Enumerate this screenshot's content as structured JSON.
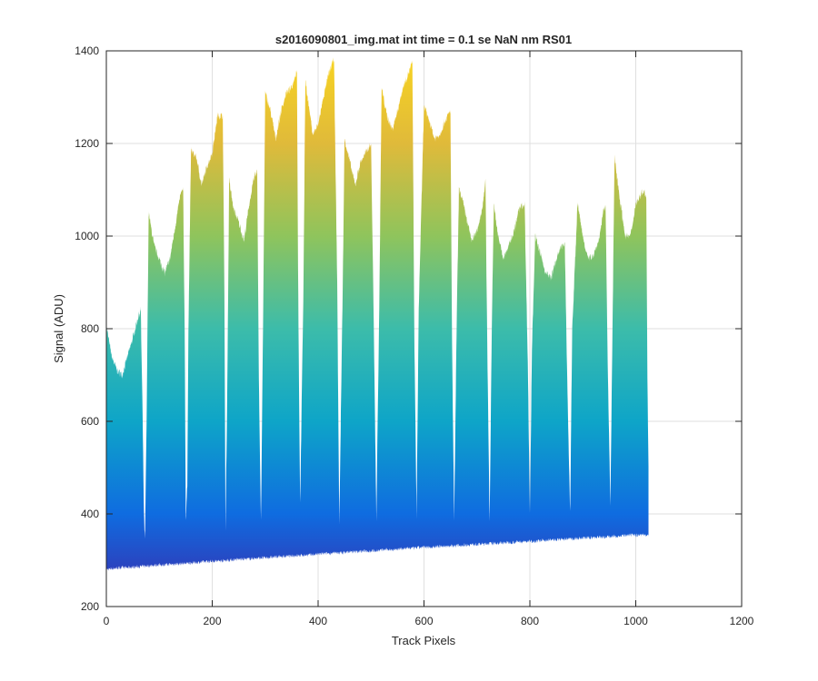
{
  "chart_data": {
    "type": "area",
    "title": "s2016090801_img.mat int time = 0.1 se  NaN nm RS01",
    "xlabel": "Track Pixels",
    "ylabel": "Signal (ADU)",
    "xlim": [
      0,
      1200
    ],
    "ylim": [
      200,
      1400
    ],
    "xticks": [
      0,
      200,
      400,
      600,
      800,
      1000,
      1200
    ],
    "yticks": [
      200,
      400,
      600,
      800,
      1000,
      1200,
      1400
    ],
    "grid": true,
    "legend": "none",
    "colormap": [
      "#3e26a8",
      "#0f6ce0",
      "#0ea5c8",
      "#3cbcaa",
      "#8fc45c",
      "#e0ba3a",
      "#f9d520"
    ],
    "noise_amplitude": 8,
    "series": [
      {
        "name": "",
        "x": [
          0,
          1,
          10,
          20,
          30,
          40,
          50,
          60,
          65,
          68,
          71,
          73,
          76,
          80,
          90,
          100,
          110,
          120,
          130,
          140,
          145,
          148,
          150,
          153,
          155,
          160,
          170,
          180,
          190,
          200,
          210,
          220,
          223,
          225,
          228,
          232,
          240,
          250,
          260,
          270,
          280,
          285,
          288,
          292,
          296,
          300,
          310,
          320,
          330,
          340,
          350,
          360,
          362,
          366,
          372,
          376,
          380,
          390,
          400,
          410,
          420,
          430,
          436,
          440,
          446,
          450,
          460,
          470,
          480,
          490,
          500,
          505,
          510,
          515,
          520,
          530,
          540,
          550,
          560,
          570,
          578,
          582,
          586,
          590,
          600,
          610,
          620,
          630,
          640,
          650,
          653,
          657,
          662,
          666,
          670,
          680,
          690,
          700,
          710,
          716,
          720,
          724,
          728,
          732,
          740,
          750,
          760,
          770,
          780,
          790,
          796,
          800,
          804,
          810,
          820,
          830,
          840,
          850,
          860,
          866,
          870,
          876,
          880,
          890,
          900,
          910,
          920,
          930,
          940,
          943,
          947,
          952,
          956,
          960,
          970,
          980,
          990,
          1000,
          1010,
          1015,
          1020,
          1022,
          1024
        ],
        "upper": [
          520,
          800,
          740,
          710,
          700,
          740,
          780,
          825,
          840,
          650,
          400,
          340,
          600,
          1050,
          980,
          950,
          920,
          950,
          1020,
          1090,
          1100,
          800,
          390,
          460,
          800,
          1185,
          1170,
          1110,
          1150,
          1180,
          1260,
          1260,
          880,
          360,
          620,
          1120,
          1060,
          1030,
          990,
          1070,
          1130,
          1140,
          700,
          380,
          800,
          1310,
          1270,
          1210,
          1270,
          1310,
          1320,
          1360,
          940,
          420,
          860,
          1340,
          1300,
          1220,
          1240,
          1300,
          1350,
          1385,
          900,
          380,
          850,
          1210,
          1160,
          1110,
          1160,
          1180,
          1200,
          820,
          390,
          800,
          1320,
          1260,
          1230,
          1270,
          1320,
          1350,
          1375,
          760,
          390,
          840,
          1280,
          1250,
          1210,
          1220,
          1250,
          1270,
          760,
          390,
          830,
          1100,
          1090,
          1040,
          990,
          1010,
          1060,
          1120,
          720,
          380,
          800,
          1070,
          1000,
          950,
          980,
          1010,
          1060,
          1070,
          730,
          400,
          760,
          1000,
          960,
          920,
          910,
          950,
          980,
          980,
          720,
          400,
          800,
          1070,
          1000,
          950,
          960,
          990,
          1060,
          1060,
          730,
          410,
          800,
          1170,
          1080,
          1000,
          1000,
          1070,
          1090,
          1100,
          1080,
          700,
          500
        ],
        "lower": [
          280,
          280,
          282,
          283,
          284,
          284,
          285,
          286,
          286,
          287,
          287,
          287,
          288,
          288,
          289,
          290,
          290,
          291,
          292,
          292,
          293,
          293,
          293,
          293,
          294,
          294,
          295,
          296,
          297,
          298,
          298,
          299,
          299,
          300,
          300,
          300,
          301,
          302,
          302,
          303,
          304,
          304,
          304,
          305,
          305,
          305,
          306,
          307,
          308,
          308,
          309,
          310,
          310,
          310,
          311,
          311,
          311,
          312,
          313,
          314,
          315,
          315,
          316,
          316,
          316,
          317,
          318,
          318,
          319,
          320,
          320,
          321,
          321,
          321,
          322,
          323,
          323,
          324,
          325,
          326,
          326,
          326,
          327,
          327,
          328,
          328,
          329,
          330,
          330,
          331,
          331,
          331,
          332,
          332,
          332,
          333,
          334,
          334,
          335,
          335,
          336,
          336,
          336,
          336,
          337,
          338,
          338,
          339,
          340,
          340,
          340,
          341,
          341,
          341,
          342,
          343,
          344,
          344,
          345,
          345,
          346,
          346,
          346,
          347,
          348,
          348,
          349,
          350,
          350,
          350,
          351,
          351,
          351,
          352,
          352,
          353,
          354,
          354,
          355,
          355,
          355,
          355,
          355
        ]
      }
    ]
  }
}
